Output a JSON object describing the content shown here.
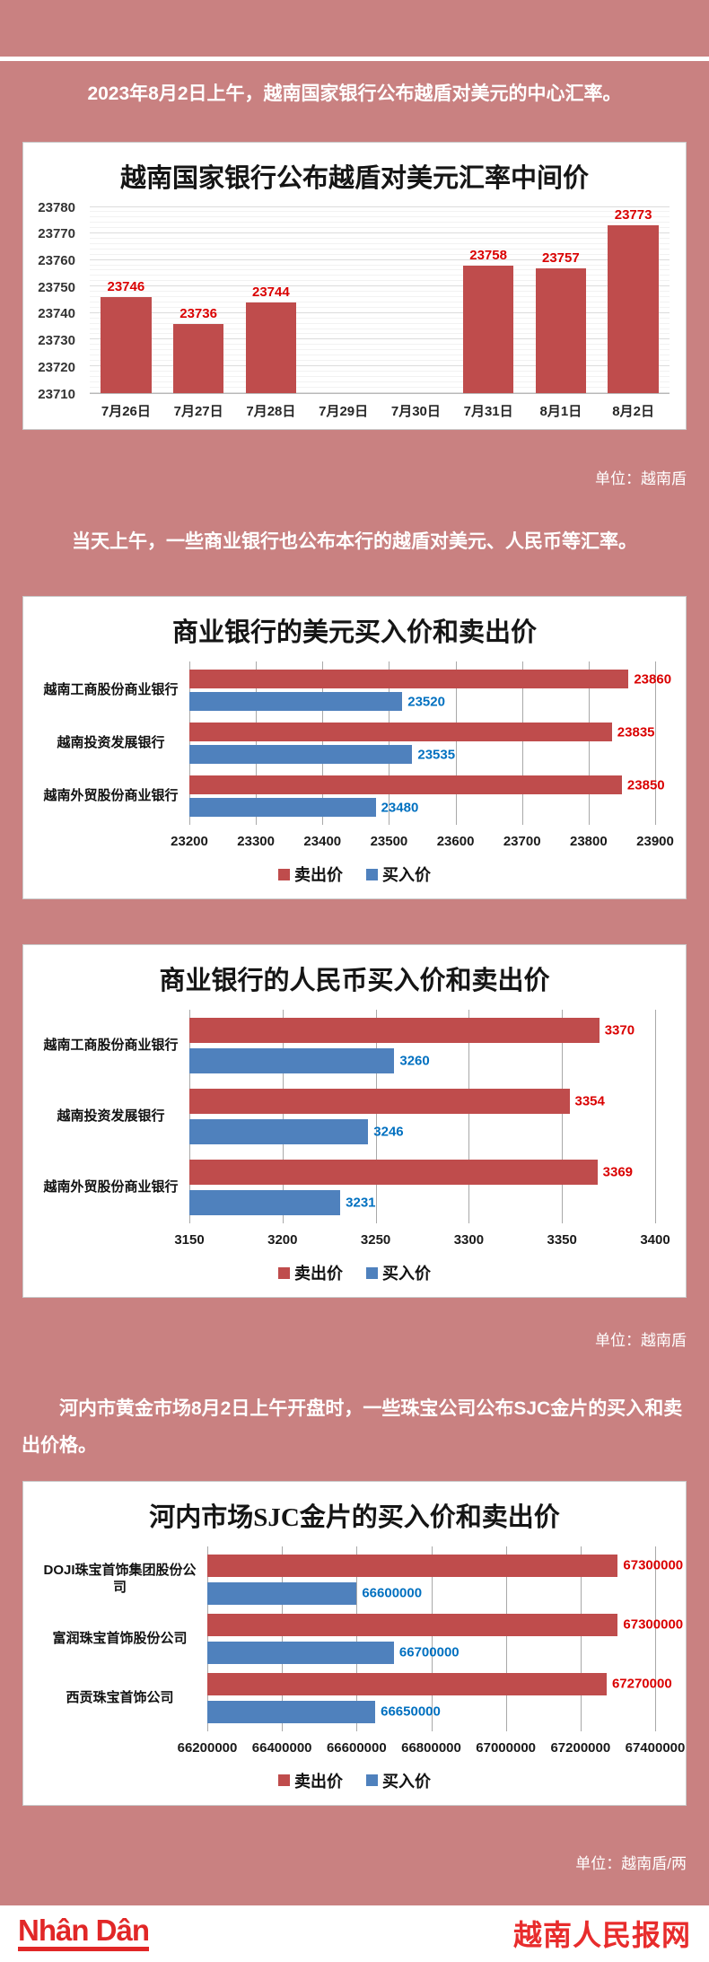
{
  "page": {
    "intro1": "2023年8月2日上午，越南国家银行公布越盾对美元的中心汇率。",
    "intro2": "当天上午，一些商业银行也公布本行的越盾对美元、人民币等汇率。",
    "intro3": "河内市黄金市场8月2日上午开盘时，一些珠宝公司公布SJC金片的买入和卖出价格。",
    "unit1": "单位：越南盾",
    "unit2": "单位：越南盾",
    "unit3": "单位：越南盾/两",
    "background_color": "#c98181"
  },
  "colors": {
    "sell_bar": "#bf4c4c",
    "buy_bar": "#4f81bd",
    "sell_label": "#da0000",
    "buy_label": "#0070c0",
    "brand_red": "#e12727"
  },
  "footer": {
    "logo": "Nhân Dân",
    "site_name": "越南人民报网"
  },
  "chart_data": [
    {
      "type": "bar",
      "title": "越南国家银行公布越盾对美元汇率中间价",
      "categories": [
        "7月26日",
        "7月27日",
        "7月28日",
        "7月29日",
        "7月30日",
        "7月31日",
        "8月1日",
        "8月2日"
      ],
      "values": [
        23746,
        23736,
        23744,
        null,
        null,
        23758,
        23757,
        23773
      ],
      "ylim": [
        23710,
        23780
      ],
      "yticks": [
        23710,
        23720,
        23730,
        23740,
        23750,
        23760,
        23770,
        23780
      ],
      "bar_color": "#bf4c4c",
      "label_color": "#da0000",
      "grid": true,
      "unit_note": "单位：越南盾"
    },
    {
      "type": "hbar",
      "title": "商业银行的美元买入价和卖出价",
      "categories": [
        "越南工商股份商业银行",
        "越南投资发展银行",
        "越南外贸股份商业银行"
      ],
      "series": [
        {
          "name": "卖出价",
          "color": "#bf4c4c",
          "label_color": "#da0000",
          "values": [
            23860,
            23835,
            23850
          ]
        },
        {
          "name": "买入价",
          "color": "#4f81bd",
          "label_color": "#0070c0",
          "values": [
            23520,
            23535,
            23480
          ]
        }
      ],
      "xlim": [
        23200,
        23900
      ],
      "xticks": [
        23200,
        23300,
        23400,
        23500,
        23600,
        23700,
        23800,
        23900
      ],
      "legend": [
        "卖出价",
        "买入价"
      ],
      "legend_position": "bottom",
      "grid": true
    },
    {
      "type": "hbar",
      "title": "商业银行的人民币买入价和卖出价",
      "categories": [
        "越南工商股份商业银行",
        "越南投资发展银行",
        "越南外贸股份商业银行"
      ],
      "series": [
        {
          "name": "卖出价",
          "color": "#bf4c4c",
          "label_color": "#da0000",
          "values": [
            3370,
            3354,
            3369
          ]
        },
        {
          "name": "买入价",
          "color": "#4f81bd",
          "label_color": "#0070c0",
          "values": [
            3260,
            3246,
            3231
          ]
        }
      ],
      "xlim": [
        3150,
        3400
      ],
      "xticks": [
        3150,
        3200,
        3250,
        3300,
        3350,
        3400
      ],
      "legend": [
        "卖出价",
        "买入价"
      ],
      "legend_position": "bottom",
      "grid": true,
      "unit_note": "单位：越南盾"
    },
    {
      "type": "hbar",
      "title": "河内市场SJC金片的买入价和卖出价",
      "categories": [
        "DOJI珠宝首饰集团股份公司",
        "富润珠宝首饰股份公司",
        "西贡珠宝首饰公司"
      ],
      "series": [
        {
          "name": "卖出价",
          "color": "#bf4c4c",
          "label_color": "#da0000",
          "values": [
            67300000,
            67300000,
            67270000
          ]
        },
        {
          "name": "买入价",
          "color": "#4f81bd",
          "label_color": "#0070c0",
          "values": [
            66600000,
            66700000,
            66650000
          ]
        }
      ],
      "xlim": [
        66200000,
        67400000
      ],
      "xticks": [
        66200000,
        66400000,
        66600000,
        66800000,
        67000000,
        67200000,
        67400000
      ],
      "legend": [
        "卖出价",
        "买入价"
      ],
      "legend_position": "bottom",
      "grid": true,
      "unit_note": "单位：越南盾/两"
    }
  ]
}
